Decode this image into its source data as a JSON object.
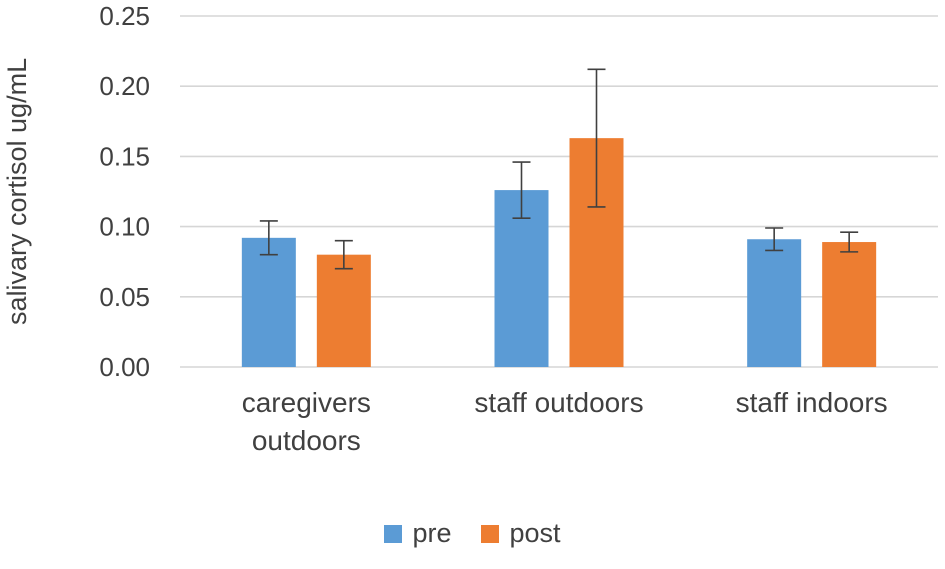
{
  "chart_data": {
    "type": "bar",
    "title": "",
    "ylabel": "salivary cortisol ug/mL",
    "xlabel": "",
    "categories": [
      "caregivers\noutdoors",
      "staff outdoors",
      "staff indoors"
    ],
    "series": [
      {
        "name": "pre",
        "color": "#5B9BD5",
        "values": [
          0.092,
          0.126,
          0.091
        ],
        "errors": [
          0.012,
          0.02,
          0.008
        ]
      },
      {
        "name": "post",
        "color": "#ED7D31",
        "values": [
          0.08,
          0.163,
          0.089
        ],
        "errors": [
          0.01,
          0.049,
          0.007
        ]
      }
    ],
    "ylim": [
      0,
      0.25
    ],
    "yticks": [
      0,
      0.05,
      0.1,
      0.15,
      0.2,
      0.25
    ],
    "ytick_format_decimals": 2,
    "grid": true,
    "gridline_color": "#D6D6D6",
    "text_color": "#404040",
    "error_bar_color": "#404040",
    "legend_position": "bottom",
    "legend": {
      "items": [
        "pre",
        "post"
      ]
    }
  }
}
